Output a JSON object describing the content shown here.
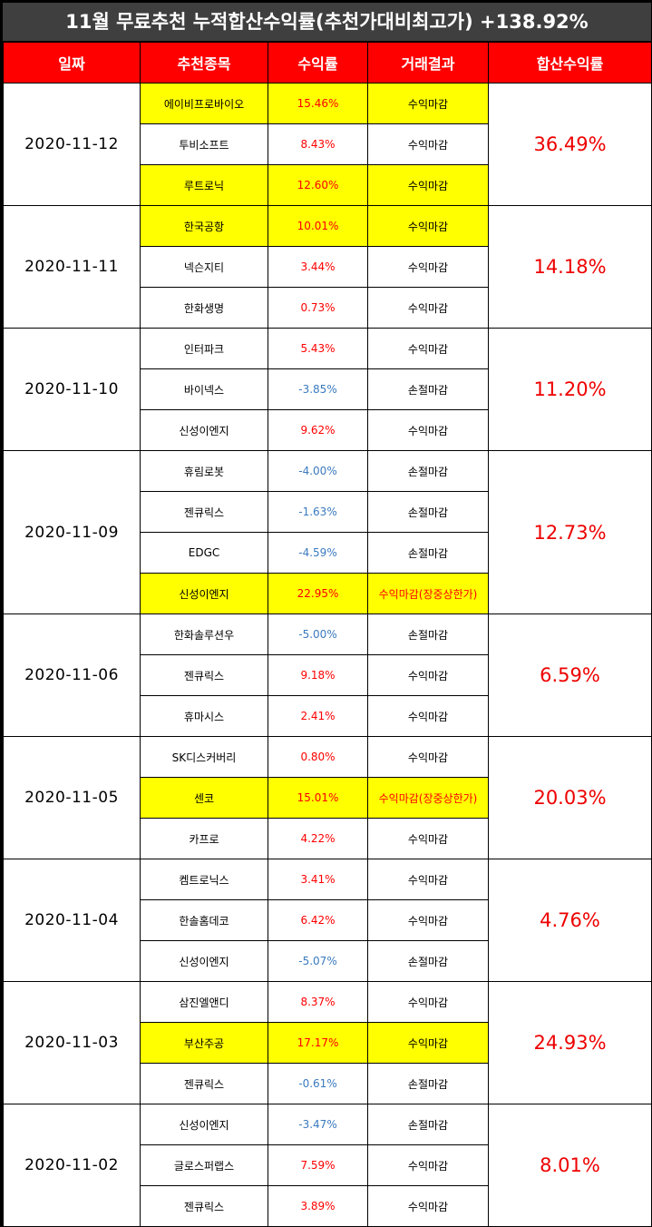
{
  "title": "11월 무료추천 누적합산수익률(추천가대비최고가) +138.92%",
  "headers": [
    "일짜",
    "추천종목",
    "수익률",
    "거래결과",
    "합산수익률"
  ],
  "colors": {
    "header_bg": "#ff0000",
    "highlight": "#ffff00",
    "positive": "#ff0000",
    "negative": "#3b7bbf",
    "title_bg": "#3f3f3f"
  },
  "groups": [
    {
      "date": "2020-11-12",
      "total": "36.49%",
      "rows": [
        {
          "stock": "에이비프로바이오",
          "ret": "15.46%",
          "result": "수익마감",
          "hl": true,
          "neg": false,
          "result_red": false
        },
        {
          "stock": "투비소프트",
          "ret": "8.43%",
          "result": "수익마감",
          "hl": false,
          "neg": false,
          "result_red": false
        },
        {
          "stock": "루트로닉",
          "ret": "12.60%",
          "result": "수익마감",
          "hl": true,
          "neg": false,
          "result_red": false
        }
      ]
    },
    {
      "date": "2020-11-11",
      "total": "14.18%",
      "rows": [
        {
          "stock": "한국공항",
          "ret": "10.01%",
          "result": "수익마감",
          "hl": true,
          "neg": false,
          "result_red": false
        },
        {
          "stock": "넥슨지티",
          "ret": "3.44%",
          "result": "수익마감",
          "hl": false,
          "neg": false,
          "result_red": false
        },
        {
          "stock": "한화생명",
          "ret": "0.73%",
          "result": "수익마감",
          "hl": false,
          "neg": false,
          "result_red": false
        }
      ]
    },
    {
      "date": "2020-11-10",
      "total": "11.20%",
      "rows": [
        {
          "stock": "인터파크",
          "ret": "5.43%",
          "result": "수익마감",
          "hl": false,
          "neg": false,
          "result_red": false
        },
        {
          "stock": "바이넥스",
          "ret": "-3.85%",
          "result": "손절마감",
          "hl": false,
          "neg": true,
          "result_red": false
        },
        {
          "stock": "신성이엔지",
          "ret": "9.62%",
          "result": "수익마감",
          "hl": false,
          "neg": false,
          "result_red": false
        }
      ]
    },
    {
      "date": "2020-11-09",
      "total": "12.73%",
      "rows": [
        {
          "stock": "휴림로봇",
          "ret": "-4.00%",
          "result": "손절마감",
          "hl": false,
          "neg": true,
          "result_red": false
        },
        {
          "stock": "젠큐릭스",
          "ret": "-1.63%",
          "result": "손절마감",
          "hl": false,
          "neg": true,
          "result_red": false
        },
        {
          "stock": "EDGC",
          "ret": "-4.59%",
          "result": "손절마감",
          "hl": false,
          "neg": true,
          "result_red": false
        },
        {
          "stock": "신성이엔지",
          "ret": "22.95%",
          "result": "수익마감(장중상한가)",
          "hl": true,
          "neg": false,
          "result_red": true
        }
      ]
    },
    {
      "date": "2020-11-06",
      "total": "6.59%",
      "rows": [
        {
          "stock": "한화솔루션우",
          "ret": "-5.00%",
          "result": "손절마감",
          "hl": false,
          "neg": true,
          "result_red": false
        },
        {
          "stock": "젠큐릭스",
          "ret": "9.18%",
          "result": "수익마감",
          "hl": false,
          "neg": false,
          "result_red": false
        },
        {
          "stock": "휴마시스",
          "ret": "2.41%",
          "result": "수익마감",
          "hl": false,
          "neg": false,
          "result_red": false
        }
      ]
    },
    {
      "date": "2020-11-05",
      "total": "20.03%",
      "rows": [
        {
          "stock": "SK디스커버리",
          "ret": "0.80%",
          "result": "수익마감",
          "hl": false,
          "neg": false,
          "result_red": false
        },
        {
          "stock": "센코",
          "ret": "15.01%",
          "result": "수익마감(장중상한가)",
          "hl": true,
          "neg": false,
          "result_red": true
        },
        {
          "stock": "카프로",
          "ret": "4.22%",
          "result": "수익마감",
          "hl": false,
          "neg": false,
          "result_red": false
        }
      ]
    },
    {
      "date": "2020-11-04",
      "total": "4.76%",
      "rows": [
        {
          "stock": "켐트로닉스",
          "ret": "3.41%",
          "result": "수익마감",
          "hl": false,
          "neg": false,
          "result_red": false
        },
        {
          "stock": "한솔홈데코",
          "ret": "6.42%",
          "result": "수익마감",
          "hl": false,
          "neg": false,
          "result_red": false
        },
        {
          "stock": "신성이엔지",
          "ret": "-5.07%",
          "result": "손절마감",
          "hl": false,
          "neg": true,
          "result_red": false
        }
      ]
    },
    {
      "date": "2020-11-03",
      "total": "24.93%",
      "rows": [
        {
          "stock": "삼진엘앤디",
          "ret": "8.37%",
          "result": "수익마감",
          "hl": false,
          "neg": false,
          "result_red": false
        },
        {
          "stock": "부산주공",
          "ret": "17.17%",
          "result": "수익마감",
          "hl": true,
          "neg": false,
          "result_red": false
        },
        {
          "stock": "젠큐릭스",
          "ret": "-0.61%",
          "result": "손절마감",
          "hl": false,
          "neg": true,
          "result_red": false
        }
      ]
    },
    {
      "date": "2020-11-02",
      "total": "8.01%",
      "rows": [
        {
          "stock": "신성이엔지",
          "ret": "-3.47%",
          "result": "손절마감",
          "hl": false,
          "neg": true,
          "result_red": false
        },
        {
          "stock": "글로스퍼랩스",
          "ret": "7.59%",
          "result": "수익마감",
          "hl": false,
          "neg": false,
          "result_red": false
        },
        {
          "stock": "젠큐릭스",
          "ret": "3.89%",
          "result": "수익마감",
          "hl": false,
          "neg": false,
          "result_red": false
        }
      ]
    }
  ]
}
